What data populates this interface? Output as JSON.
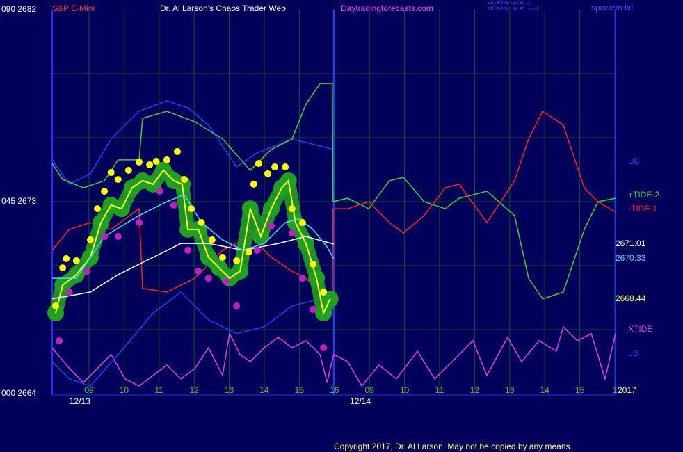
{
  "chart_data": {
    "type": "line",
    "title": "Dr. Al Larson's Chaos Trader Web",
    "instrument": "S&P E-Mini",
    "website": "Daytradingforecasts.com",
    "timestamps": [
      "12/13/2017 21:30 UT",
      "12/13/2017 16:30 Local"
    ],
    "file_name": "spcctem.txt",
    "copyright": "Copyright 2017, Dr. Al Larson. May not be copied by any means.",
    "year_label": "2017",
    "xlim": [
      -1.05,
      15.02
    ],
    "ylim": [
      2664,
      2682
    ],
    "yticks": [
      {
        "value": 2682,
        "label": "090  2682"
      },
      {
        "value": 2673,
        "label": "045  2673"
      },
      {
        "value": 2664,
        "label": "000  2664"
      }
    ],
    "ygrid": [
      2679,
      2676,
      2673,
      2670,
      2667
    ],
    "xticks": [
      {
        "value": 0,
        "label": "09"
      },
      {
        "value": 1,
        "label": "10"
      },
      {
        "value": 2,
        "label": "11"
      },
      {
        "value": 3,
        "label": "12"
      },
      {
        "value": 4,
        "label": "13"
      },
      {
        "value": 5,
        "label": "14"
      },
      {
        "value": 6,
        "label": "15"
      },
      {
        "value": 7,
        "label": "16"
      },
      {
        "value": 8,
        "label": "09"
      },
      {
        "value": 9,
        "label": "10"
      },
      {
        "value": 10,
        "label": "11"
      },
      {
        "value": 11,
        "label": "12"
      },
      {
        "value": 12,
        "label": "13"
      },
      {
        "value": 13,
        "label": "14"
      },
      {
        "value": 14,
        "label": "15"
      },
      {
        "value": 15,
        "label": "1"
      }
    ],
    "day_labels": [
      {
        "value": -0.26,
        "label": "12/13"
      },
      {
        "value": 7.74,
        "label": "12/14"
      }
    ],
    "day_divider": 6.98,
    "grid": true,
    "series": [
      {
        "name": "XTIDE",
        "color": "#e040e0",
        "style": "line",
        "x": [
          -1.05,
          -0.56,
          -0.16,
          0.24,
          0.63,
          1.03,
          1.43,
          1.83,
          2.22,
          2.62,
          3.02,
          3.41,
          3.81,
          4.01,
          4.31,
          4.6,
          5.0,
          5.4,
          5.79,
          6.19,
          6.59,
          6.79,
          6.98,
          7.38,
          7.78,
          8.27,
          8.77,
          9.37,
          9.86,
          10.36,
          10.95,
          11.35,
          11.94,
          12.34,
          12.84,
          13.33,
          13.53,
          13.93,
          14.33,
          14.72,
          15.02
        ],
        "values": [
          2666.15,
          2665.18,
          2664.52,
          2665.18,
          2665.83,
          2664.69,
          2664.36,
          2664.85,
          2665.34,
          2664.69,
          2665.18,
          2666.15,
          2664.85,
          2666.81,
          2665.83,
          2665.5,
          2666.15,
          2666.64,
          2666.15,
          2666.48,
          2665.83,
          2664.52,
          2665.83,
          2665.5,
          2664.36,
          2665.34,
          2664.69,
          2665.99,
          2664.69,
          2665.5,
          2666.48,
          2664.85,
          2666.64,
          2665.5,
          2666.48,
          2665.99,
          2667.13,
          2666.48,
          2666.81,
          2664.69,
          2666.81
        ]
      },
      {
        "name": "UB",
        "color": "#2040ff",
        "style": "line",
        "x": [
          -1.05,
          -0.56,
          0.04,
          0.63,
          1.43,
          2.22,
          2.82,
          3.41,
          4.21,
          4.8,
          5.79,
          6.59,
          6.98
        ],
        "values": [
          2674.96,
          2673.82,
          2674.31,
          2675.94,
          2677.24,
          2677.73,
          2677.4,
          2676.59,
          2674.63,
          2675.29,
          2675.94,
          2675.61,
          2675.45
        ]
      },
      {
        "name": "LB",
        "color": "#2040ff",
        "style": "line",
        "x": [
          -1.05,
          -0.56,
          0.04,
          0.83,
          1.83,
          2.62,
          3.41,
          4.21,
          5.0,
          5.79,
          6.59,
          6.98
        ],
        "values": [
          2665.5,
          2664.69,
          2664.36,
          2665.83,
          2667.78,
          2668.76,
          2667.46,
          2666.81,
          2667.13,
          2668.11,
          2668.44,
          2668.6
        ]
      },
      {
        "name": "+TIDE-2",
        "color": "#40d040",
        "style": "line",
        "x": [
          -1.05,
          -0.75,
          -0.16,
          0.44,
          0.83,
          1.43,
          1.53,
          2.22,
          3.02,
          3.81,
          4.6,
          5.2,
          5.79,
          6.19,
          6.59,
          6.94,
          6.96,
          7.38,
          7.98,
          8.57,
          8.97,
          9.56,
          10.16,
          10.56,
          11.35,
          12.14,
          12.54,
          12.94,
          13.53,
          14.13,
          14.52,
          15.02
        ],
        "values": [
          2674.79,
          2674.04,
          2673.65,
          2673.98,
          2674.96,
          2674.96,
          2676.91,
          2677.24,
          2676.75,
          2675.94,
          2674.47,
          2675.45,
          2675.94,
          2677.57,
          2678.54,
          2678.54,
          2673.0,
          2673.16,
          2672.67,
          2673.98,
          2674.14,
          2673.0,
          2672.67,
          2673.16,
          2673.49,
          2672.35,
          2669.41,
          2668.44,
          2668.76,
          2671.7,
          2673.0,
          2673.16
        ]
      },
      {
        "name": "-TIDE-1",
        "color": "#ff2020",
        "style": "line",
        "x": [
          -1.05,
          -0.56,
          0.04,
          0.63,
          1.43,
          1.53,
          2.22,
          3.02,
          3.81,
          4.6,
          5.2,
          5.79,
          6.19,
          6.59,
          6.94,
          6.96,
          7.38,
          7.98,
          8.57,
          8.97,
          9.56,
          10.16,
          10.56,
          11.35,
          12.14,
          12.54,
          12.94,
          13.53,
          14.13,
          14.52,
          15.02
        ],
        "values": [
          2670.72,
          2671.7,
          2672.02,
          2671.7,
          2672.67,
          2668.93,
          2668.76,
          2669.41,
          2670.72,
          2671.37,
          2670.39,
          2669.74,
          2669.41,
          2668.76,
          2668.44,
          2672.67,
          2672.67,
          2673.0,
          2672.02,
          2671.53,
          2672.35,
          2673.65,
          2673.82,
          2672.02,
          2673.98,
          2675.94,
          2677.24,
          2676.59,
          2673.65,
          2673.0,
          2672.51
        ]
      },
      {
        "color": "#ffff40",
        "style": "line",
        "bubble_color": "#20a020",
        "end_label": true,
        "x": [
          -0.95,
          -0.75,
          -0.36,
          0.04,
          0.34,
          0.63,
          0.93,
          1.23,
          1.53,
          1.83,
          2.12,
          2.42,
          2.66,
          2.82,
          3.12,
          3.41,
          3.71,
          4.01,
          4.31,
          4.6,
          4.9,
          5.2,
          5.5,
          5.69,
          5.89,
          6.19,
          6.49,
          6.69,
          6.88
        ],
        "values": [
          2667.78,
          2669.09,
          2669.58,
          2670.39,
          2672.02,
          2672.84,
          2672.67,
          2673.65,
          2673.98,
          2673.82,
          2674.47,
          2673.98,
          2673.82,
          2671.7,
          2671.7,
          2670.39,
          2669.9,
          2669.41,
          2669.74,
          2672.67,
          2671.37,
          2672.67,
          2673.65,
          2673.98,
          2672.02,
          2671.04,
          2669.41,
          2667.78,
          2668.44
        ]
      },
      {
        "color": "#ffffff",
        "style": "line",
        "end_label": true,
        "x": [
          -1.05,
          0.04,
          0.83,
          1.83,
          2.62,
          3.41,
          4.4,
          5.4,
          6.19,
          6.98
        ],
        "values": [
          2668.44,
          2668.76,
          2669.58,
          2670.39,
          2671.04,
          2671.04,
          2670.72,
          2671.04,
          2671.37,
          2671.01
        ]
      },
      {
        "color": "#40e0ff",
        "style": "line",
        "end_label": true,
        "x": [
          -1.05,
          -0.36,
          0.44,
          1.43,
          2.22,
          2.72,
          3.21,
          3.81,
          4.4,
          5.0,
          5.6,
          5.99,
          6.39,
          6.79,
          6.98
        ],
        "values": [
          2669.41,
          2669.41,
          2671.37,
          2672.35,
          2673.0,
          2673.33,
          2672.02,
          2671.21,
          2670.72,
          2671.04,
          2672.02,
          2672.19,
          2671.7,
          2670.88,
          2670.33
        ]
      },
      {
        "color": "#ffff00",
        "style": "dots",
        "x": [
          -0.95,
          -0.75,
          -0.65,
          -0.36,
          0.04,
          0.24,
          0.44,
          0.63,
          0.83,
          1.13,
          1.43,
          1.73,
          1.92,
          2.22,
          2.52,
          2.72,
          2.92,
          3.21,
          3.51,
          3.81,
          4.21,
          4.56,
          4.7,
          4.84,
          5.1,
          5.3,
          5.6,
          5.79,
          6.09,
          6.39,
          6.69
        ],
        "values": [
          2668.11,
          2669.9,
          2670.33,
          2670.23,
          2671.21,
          2672.67,
          2673.49,
          2674.37,
          2674.04,
          2674.47,
          2674.86,
          2674.73,
          2674.89,
          2674.96,
          2675.35,
          2674.04,
          2672.67,
          2672.02,
          2671.21,
          2670.39,
          2670.23,
          2670.65,
          2673.82,
          2674.79,
          2674.31,
          2674.63,
          2674.63,
          2672.67,
          2672.02,
          2670.07,
          2668.76
        ]
      },
      {
        "color": "#c020c0",
        "style": "dots",
        "x": [
          -0.85,
          -0.56,
          -0.06,
          0.44,
          0.83,
          1.43,
          2.02,
          2.42,
          2.82,
          3.12,
          3.41,
          3.91,
          4.21,
          4.8,
          5.2,
          5.79,
          6.09,
          6.39,
          6.69
        ],
        "values": [
          2666.48,
          2668.76,
          2669.74,
          2671.37,
          2671.37,
          2672.02,
          2673.49,
          2672.84,
          2670.72,
          2669.74,
          2669.41,
          2669.25,
          2668.11,
          2670.72,
          2671.86,
          2671.53,
          2669.41,
          2667.95,
          2666.15
        ]
      }
    ]
  }
}
